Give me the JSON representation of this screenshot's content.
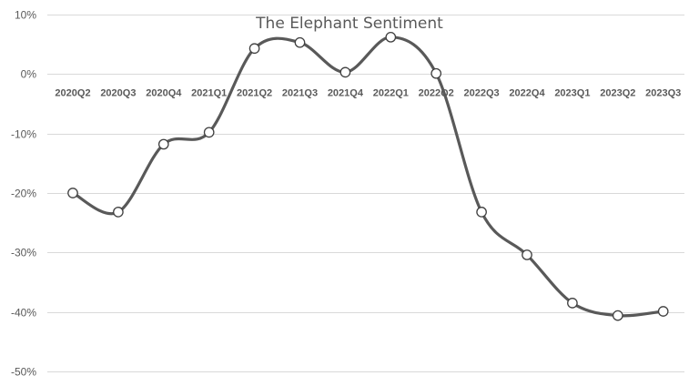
{
  "chart_data": {
    "type": "line",
    "title": "The Elephant Sentiment",
    "xlabel": "",
    "ylabel": "",
    "categories": [
      "2020Q2",
      "2020Q3",
      "2020Q4",
      "2021Q1",
      "2021Q2",
      "2021Q3",
      "2021Q4",
      "2022Q1",
      "2022Q2",
      "2022Q3",
      "2022Q4",
      "2023Q1",
      "2023Q2",
      "2023Q3"
    ],
    "series": [
      {
        "values": [
          -20,
          -23.2,
          -11.8,
          -9.8,
          4.3,
          5.3,
          0.3,
          6.2,
          0.1,
          -23.2,
          -30.4,
          -38.5,
          -40.6,
          -39.9
        ]
      }
    ],
    "ylim": [
      -50,
      10
    ],
    "yticks": [
      "10%",
      "0%",
      "-10%",
      "-20%",
      "-30%",
      "-40%",
      "-50%"
    ],
    "ytick_values": [
      10,
      0,
      -10,
      -20,
      -30,
      -40,
      -50
    ],
    "grid": true,
    "legend": "none",
    "smooth": true,
    "line_color": "#595959",
    "marker_fill": "#ffffff",
    "grid_color": "#d9d9d9"
  }
}
